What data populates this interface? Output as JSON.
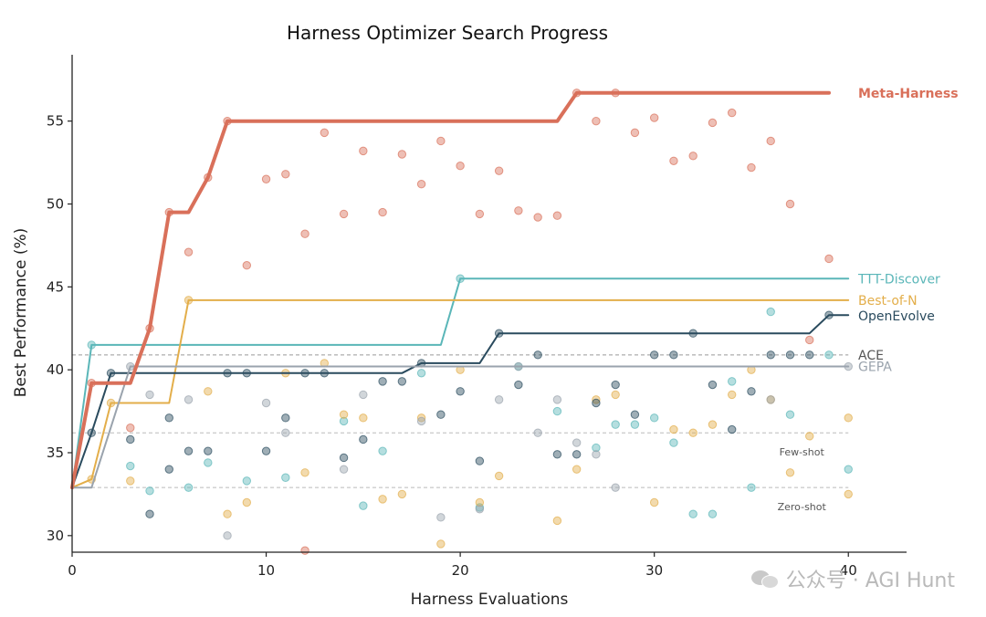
{
  "chart_data": {
    "type": "line",
    "title": "Harness Optimizer Search Progress",
    "xlabel": "Harness Evaluations",
    "ylabel": "Best Performance (%)",
    "xlim": [
      0,
      43
    ],
    "ylim": [
      29,
      59
    ],
    "xticks": [
      0,
      10,
      20,
      30,
      40
    ],
    "yticks": [
      30,
      35,
      40,
      45,
      50,
      55
    ],
    "grid": false,
    "legend": "inline labels at right end of lines",
    "reference_lines": [
      {
        "name": "Few-shot",
        "y": 36.2,
        "color": "#bbbbbb"
      },
      {
        "name": "Zero-shot",
        "y": 32.9,
        "color": "#bbbbbb"
      },
      {
        "name": "ACE",
        "y": 40.9,
        "color": "#999999"
      }
    ],
    "series": [
      {
        "name": "Meta-Harness",
        "color": "#d9705a",
        "width": 4,
        "bold": true,
        "x": [
          0,
          1,
          3,
          4,
          5,
          6,
          7,
          8,
          25,
          26,
          39
        ],
        "y": [
          32.9,
          39.2,
          39.2,
          42.5,
          49.5,
          49.5,
          51.6,
          55.0,
          55.0,
          56.7,
          56.7
        ],
        "points": [
          [
            1,
            39.2
          ],
          [
            3,
            36.5
          ],
          [
            4,
            42.5
          ],
          [
            5,
            49.5
          ],
          [
            6,
            47.1
          ],
          [
            7,
            51.6
          ],
          [
            8,
            55.0
          ],
          [
            9,
            46.3
          ],
          [
            10,
            51.5
          ],
          [
            11,
            51.8
          ],
          [
            12,
            48.2
          ],
          [
            12,
            29.1
          ],
          [
            13,
            54.3
          ],
          [
            14,
            49.4
          ],
          [
            15,
            53.2
          ],
          [
            16,
            49.5
          ],
          [
            17,
            53.0
          ],
          [
            18,
            51.2
          ],
          [
            19,
            53.8
          ],
          [
            20,
            52.3
          ],
          [
            21,
            49.4
          ],
          [
            22,
            52.0
          ],
          [
            23,
            49.6
          ],
          [
            24,
            49.2
          ],
          [
            25,
            49.3
          ],
          [
            26,
            56.7
          ],
          [
            27,
            55.0
          ],
          [
            28,
            56.7
          ],
          [
            29,
            54.3
          ],
          [
            30,
            55.2
          ],
          [
            31,
            52.6
          ],
          [
            32,
            52.9
          ],
          [
            33,
            54.9
          ],
          [
            34,
            55.5
          ],
          [
            35,
            52.2
          ],
          [
            36,
            53.8
          ],
          [
            37,
            50.0
          ],
          [
            38,
            41.8
          ],
          [
            39,
            46.7
          ]
        ]
      },
      {
        "name": "TTT-Discover",
        "color": "#5ab6b8",
        "width": 2,
        "x": [
          0,
          1,
          19,
          20,
          40
        ],
        "y": [
          32.9,
          41.5,
          41.5,
          45.5,
          45.5
        ],
        "points": [
          [
            1,
            41.5
          ],
          [
            3,
            34.2
          ],
          [
            4,
            32.7
          ],
          [
            6,
            32.9
          ],
          [
            7,
            34.4
          ],
          [
            9,
            33.3
          ],
          [
            11,
            33.5
          ],
          [
            14,
            36.9
          ],
          [
            15,
            31.8
          ],
          [
            16,
            35.1
          ],
          [
            18,
            39.8
          ],
          [
            20,
            45.5
          ],
          [
            21,
            31.7
          ],
          [
            23,
            40.2
          ],
          [
            25,
            37.5
          ],
          [
            27,
            35.3
          ],
          [
            28,
            36.7
          ],
          [
            29,
            36.7
          ],
          [
            30,
            37.1
          ],
          [
            31,
            35.6
          ],
          [
            32,
            31.3
          ],
          [
            33,
            31.3
          ],
          [
            34,
            39.3
          ],
          [
            35,
            32.9
          ],
          [
            36,
            43.5
          ],
          [
            37,
            37.3
          ],
          [
            39,
            40.9
          ],
          [
            40,
            34.0
          ]
        ]
      },
      {
        "name": "Best-of-N",
        "color": "#e3ae4a",
        "width": 2,
        "x": [
          0,
          1,
          2,
          5,
          6,
          40
        ],
        "y": [
          32.9,
          33.4,
          38.0,
          38.0,
          44.2,
          44.2
        ],
        "points": [
          [
            1,
            33.4
          ],
          [
            2,
            38.0
          ],
          [
            3,
            33.3
          ],
          [
            6,
            44.2
          ],
          [
            7,
            38.7
          ],
          [
            8,
            31.3
          ],
          [
            9,
            32.0
          ],
          [
            11,
            39.8
          ],
          [
            12,
            33.8
          ],
          [
            13,
            40.4
          ],
          [
            14,
            37.3
          ],
          [
            15,
            37.1
          ],
          [
            16,
            32.2
          ],
          [
            17,
            32.5
          ],
          [
            18,
            37.1
          ],
          [
            19,
            29.5
          ],
          [
            20,
            40.0
          ],
          [
            21,
            32.0
          ],
          [
            22,
            33.6
          ],
          [
            25,
            30.9
          ],
          [
            26,
            34.0
          ],
          [
            27,
            38.2
          ],
          [
            28,
            38.5
          ],
          [
            30,
            32.0
          ],
          [
            31,
            36.4
          ],
          [
            32,
            36.2
          ],
          [
            33,
            36.7
          ],
          [
            34,
            38.5
          ],
          [
            35,
            40.0
          ],
          [
            36,
            38.2
          ],
          [
            37,
            33.8
          ],
          [
            38,
            36.0
          ],
          [
            40,
            37.1
          ],
          [
            40,
            32.5
          ]
        ]
      },
      {
        "name": "OpenEvolve",
        "color": "#2a4b5e",
        "width": 2,
        "x": [
          0,
          1,
          2,
          17,
          18,
          21,
          22,
          38,
          39,
          40
        ],
        "y": [
          32.9,
          36.2,
          39.8,
          39.8,
          40.4,
          40.4,
          42.2,
          42.2,
          43.3,
          43.3
        ],
        "points": [
          [
            1,
            36.2
          ],
          [
            2,
            39.8
          ],
          [
            3,
            35.8
          ],
          [
            4,
            31.3
          ],
          [
            5,
            34.0
          ],
          [
            5,
            37.1
          ],
          [
            6,
            35.1
          ],
          [
            7,
            35.1
          ],
          [
            8,
            39.8
          ],
          [
            9,
            39.8
          ],
          [
            10,
            35.1
          ],
          [
            11,
            37.1
          ],
          [
            12,
            39.8
          ],
          [
            13,
            39.8
          ],
          [
            14,
            34.7
          ],
          [
            15,
            35.8
          ],
          [
            16,
            39.3
          ],
          [
            17,
            39.3
          ],
          [
            18,
            40.4
          ],
          [
            19,
            37.3
          ],
          [
            20,
            38.7
          ],
          [
            21,
            34.5
          ],
          [
            22,
            42.2
          ],
          [
            23,
            39.1
          ],
          [
            24,
            40.9
          ],
          [
            25,
            34.9
          ],
          [
            26,
            34.9
          ],
          [
            27,
            38.0
          ],
          [
            28,
            39.1
          ],
          [
            29,
            37.3
          ],
          [
            30,
            40.9
          ],
          [
            31,
            40.9
          ],
          [
            32,
            42.2
          ],
          [
            33,
            39.1
          ],
          [
            34,
            36.4
          ],
          [
            35,
            38.7
          ],
          [
            36,
            40.9
          ],
          [
            37,
            40.9
          ],
          [
            38,
            40.9
          ],
          [
            39,
            43.3
          ]
        ]
      },
      {
        "name": "GEPA",
        "color": "#9aa3ad",
        "width": 2,
        "x": [
          0,
          1,
          3,
          40
        ],
        "y": [
          32.9,
          32.9,
          40.2,
          40.2
        ],
        "points": [
          [
            3,
            40.2
          ],
          [
            4,
            38.5
          ],
          [
            6,
            38.2
          ],
          [
            8,
            30.0
          ],
          [
            10,
            38.0
          ],
          [
            11,
            36.2
          ],
          [
            14,
            34.0
          ],
          [
            15,
            38.5
          ],
          [
            18,
            36.9
          ],
          [
            19,
            31.1
          ],
          [
            21,
            31.6
          ],
          [
            22,
            38.2
          ],
          [
            23,
            40.2
          ],
          [
            24,
            36.2
          ],
          [
            25,
            38.2
          ],
          [
            26,
            35.6
          ],
          [
            27,
            34.9
          ],
          [
            28,
            32.9
          ],
          [
            36,
            38.2
          ],
          [
            40,
            40.2
          ]
        ]
      }
    ]
  },
  "watermark": {
    "icon": "wechat-icon",
    "text": "公众号 · AGI Hunt"
  }
}
